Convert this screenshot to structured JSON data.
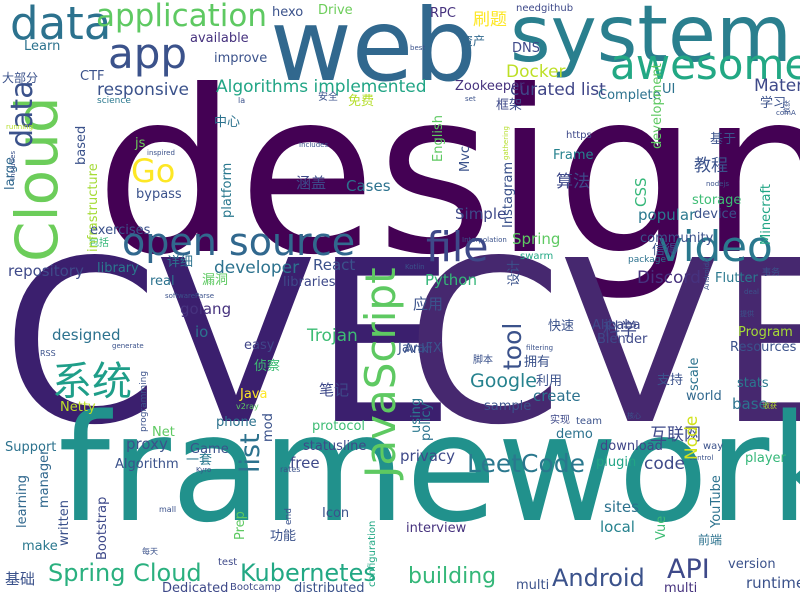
{
  "words": [
    {
      "t": "design",
      "c": "#440154",
      "v": "design"
    },
    {
      "t": "CVE",
      "c": "#3b1f6e",
      "v": "CVE-1"
    },
    {
      "t": "CVE",
      "c": "#46286f",
      "v": "CVE-2"
    },
    {
      "t": "framework",
      "c": "#21918c",
      "v": "framework"
    },
    {
      "t": "web",
      "c": "#31688e",
      "v": "web"
    },
    {
      "t": "system",
      "c": "#2a7f8e",
      "v": "system"
    },
    {
      "t": "Cloud",
      "c": "#6ccd5a",
      "v": "cloud"
    },
    {
      "t": "open source",
      "c": "#31688e",
      "v": "open-source"
    },
    {
      "t": "awesome",
      "c": "#22a884",
      "v": "awesome"
    },
    {
      "t": "JavaScript",
      "c": "#5ec962",
      "v": "javascript"
    },
    {
      "t": "app",
      "c": "#3b528b",
      "v": "app"
    },
    {
      "t": "data",
      "c": "#2c728e",
      "v": "data-top"
    },
    {
      "t": "application",
      "c": "#5ec962",
      "v": "application"
    },
    {
      "t": "video",
      "c": "#2a788e",
      "v": "video"
    },
    {
      "t": "file",
      "c": "#3e4989",
      "v": "file"
    },
    {
      "t": "Go",
      "c": "#fde725",
      "v": "go"
    },
    {
      "t": "系统",
      "c": "#1f9e89",
      "v": "xitong"
    },
    {
      "t": "data",
      "c": "#3b528b",
      "v": "data-left"
    },
    {
      "t": "Spring Cloud",
      "c": "#2ab07f",
      "v": "spring-cloud"
    },
    {
      "t": "Kubernetes",
      "c": "#22a884",
      "v": "kubernetes"
    },
    {
      "t": "LeetCode",
      "c": "#2a788e",
      "v": "leetcode"
    },
    {
      "t": "Android",
      "c": "#3b528b",
      "v": "android"
    },
    {
      "t": "API",
      "c": "#3e4989",
      "v": "api"
    },
    {
      "t": "building",
      "c": "#35b779",
      "v": "building"
    },
    {
      "t": "list",
      "c": "#2c728e",
      "v": "list"
    },
    {
      "t": "tool",
      "c": "#3b528b",
      "v": "tool"
    },
    {
      "t": "Google",
      "c": "#26828e",
      "v": "google"
    },
    {
      "t": "Docker",
      "c": "#bddf26",
      "v": "docker"
    },
    {
      "t": "Algorithms implemented",
      "c": "#21a585",
      "v": "algorithms-implemented"
    },
    {
      "t": "curated list",
      "c": "#404688",
      "v": "curated-list"
    },
    {
      "t": "responsive",
      "c": "#3b528b",
      "v": "responsive"
    },
    {
      "t": "developer",
      "c": "#2c728e",
      "v": "developer"
    },
    {
      "t": "Trojan",
      "c": "#3dbc74",
      "v": "trojan"
    },
    {
      "t": "Python",
      "c": "#35b779",
      "v": "python"
    },
    {
      "t": "React",
      "c": "#3b528b",
      "v": "react"
    },
    {
      "t": "Spring",
      "c": "#5ec962",
      "v": "spring"
    },
    {
      "t": "Discord",
      "c": "#46327e",
      "v": "discord"
    },
    {
      "t": "repository",
      "c": "#3e4989",
      "v": "repository"
    },
    {
      "t": "improve",
      "c": "#3b528b",
      "v": "improve"
    },
    {
      "t": "available",
      "c": "#46327e",
      "v": "available"
    },
    {
      "t": "proxy",
      "c": "#3b528b",
      "v": "proxy"
    },
    {
      "t": "Bootstrap",
      "c": "#3e4989",
      "v": "bootstrap"
    },
    {
      "t": "learning",
      "c": "#31688e",
      "v": "learning"
    },
    {
      "t": "designed",
      "c": "#2c728e",
      "v": "designed"
    },
    {
      "t": "Algorithm",
      "c": "#3b528b",
      "v": "algorithm"
    },
    {
      "t": "interview",
      "c": "#46327e",
      "v": "interview"
    },
    {
      "t": "privacy",
      "c": "#3e4989",
      "v": "privacy"
    },
    {
      "t": "code",
      "c": "#3e4989",
      "v": "code"
    },
    {
      "t": "create",
      "c": "#2c728e",
      "v": "create"
    },
    {
      "t": "Node",
      "c": "#d2e21b",
      "v": "node"
    },
    {
      "t": "runtime",
      "c": "#3b528b",
      "v": "runtime"
    },
    {
      "t": "version",
      "c": "#3b528b",
      "v": "version"
    },
    {
      "t": "local",
      "c": "#26828e",
      "v": "local"
    },
    {
      "t": "sites",
      "c": "#2c728e",
      "v": "sites"
    },
    {
      "t": "Flutter",
      "c": "#2a788e",
      "v": "flutter"
    },
    {
      "t": "Blender",
      "c": "#3e4989",
      "v": "blender"
    },
    {
      "t": "Alibaba",
      "c": "#3e4989",
      "v": "alibaba"
    },
    {
      "t": "Program",
      "c": "#a5db36",
      "v": "program"
    },
    {
      "t": "Resources",
      "c": "#3b528b",
      "v": "resources"
    },
    {
      "t": "scale",
      "c": "#2c728e",
      "v": "scale"
    },
    {
      "t": "stats",
      "c": "#2a788e",
      "v": "stats"
    },
    {
      "t": "base",
      "c": "#2c728e",
      "v": "base"
    },
    {
      "t": "world",
      "c": "#31688e",
      "v": "world"
    },
    {
      "t": "player",
      "c": "#35b779",
      "v": "player"
    },
    {
      "t": "download",
      "c": "#404688",
      "v": "download"
    },
    {
      "t": "plugin",
      "c": "#21a585",
      "v": "plugin"
    },
    {
      "t": "demo",
      "c": "#2c728e",
      "v": "demo"
    },
    {
      "t": "sample",
      "c": "#3b528b",
      "v": "sample"
    },
    {
      "t": "using",
      "c": "#2a788e",
      "v": "using"
    },
    {
      "t": "policy",
      "c": "#2c728e",
      "v": "policy"
    },
    {
      "t": "protocol",
      "c": "#3dbc74",
      "v": "protocol"
    },
    {
      "t": "statusline",
      "c": "#3e4989",
      "v": "statusline"
    },
    {
      "t": "free",
      "c": "#3e4989",
      "v": "free"
    },
    {
      "t": "mod",
      "c": "#3b528b",
      "v": "mod"
    },
    {
      "t": "phone",
      "c": "#2c728e",
      "v": "phone"
    },
    {
      "t": "Java",
      "c": "#fde725",
      "v": "java"
    },
    {
      "t": "easy",
      "c": "#404688",
      "v": "easy"
    },
    {
      "t": "io",
      "c": "#2c728e",
      "v": "io"
    },
    {
      "t": "golang",
      "c": "#46327e",
      "v": "golang"
    },
    {
      "t": "libraries",
      "c": "#3e4989",
      "v": "libraries"
    },
    {
      "t": "real",
      "c": "#2c728e",
      "v": "real"
    },
    {
      "t": "library",
      "c": "#2a788e",
      "v": "library"
    },
    {
      "t": "Game",
      "c": "#3b528b",
      "v": "game"
    },
    {
      "t": "Net",
      "c": "#5ec962",
      "v": "net"
    },
    {
      "t": "Netty",
      "c": "#bddf26",
      "v": "netty"
    },
    {
      "t": "Support",
      "c": "#2c728e",
      "v": "support"
    },
    {
      "t": "make",
      "c": "#2a788e",
      "v": "make"
    },
    {
      "t": "written",
      "c": "#3b528b",
      "v": "written"
    },
    {
      "t": "manager",
      "c": "#31688e",
      "v": "manager"
    },
    {
      "t": "front",
      "c": "#3b528b",
      "v": "front"
    },
    {
      "t": "bypass",
      "c": "#2c728e",
      "v": "bypass"
    },
    {
      "t": "Cases",
      "c": "#6ccd5a",
      "v": "cases"
    },
    {
      "t": "js",
      "c": "#3e4989",
      "v": "js"
    },
    {
      "t": "Simple",
      "c": "#35b779",
      "v": "simple"
    },
    {
      "t": "CSS",
      "c": "#2a788e",
      "v": "css"
    },
    {
      "t": "popular",
      "c": "#3dbc74",
      "v": "popular"
    },
    {
      "t": "storage",
      "c": "#3b528b",
      "v": "storage"
    },
    {
      "t": "device",
      "c": "#3b528b",
      "v": "device"
    },
    {
      "t": "community",
      "c": "#2c728e",
      "v": "community"
    },
    {
      "t": "package",
      "c": "#2c728e",
      "v": "package"
    },
    {
      "t": "Complete",
      "c": "#2c728e",
      "v": "complete"
    },
    {
      "t": "UI",
      "c": "#3e4989",
      "v": "ui"
    },
    {
      "t": "Material",
      "c": "#46327e",
      "v": "material"
    },
    {
      "t": "Zookeeper",
      "c": "#3b528b",
      "v": "zookeeper"
    },
    {
      "t": "Mvc",
      "c": "#5ec962",
      "v": "mvc"
    },
    {
      "t": "English",
      "c": "#3b528b",
      "v": "english"
    },
    {
      "t": "Instagram",
      "c": "#22a884",
      "v": "instagram"
    },
    {
      "t": "swarm",
      "c": "#26828e",
      "v": "swarm"
    },
    {
      "t": "Frame",
      "c": "#3e4989",
      "v": "frame"
    },
    {
      "t": "https",
      "c": "#5ec962",
      "v": "https"
    },
    {
      "t": "development",
      "c": "#21a585",
      "v": "development"
    },
    {
      "t": "Minecraft",
      "c": "#a5db36",
      "v": "minecraft"
    },
    {
      "t": "infrastructure",
      "c": "#2a788e",
      "v": "infrastructure"
    },
    {
      "t": "platform",
      "c": "#3b528b",
      "v": "platform"
    },
    {
      "t": "based",
      "c": "#31688e",
      "v": "based"
    },
    {
      "t": "large",
      "c": "#3b528b",
      "v": "large"
    },
    {
      "t": "exercises",
      "c": "#2c728e",
      "v": "exercises"
    },
    {
      "t": "Learn",
      "c": "#3b528b",
      "v": "learn"
    },
    {
      "t": "CTF",
      "c": "#2a788e",
      "v": "ctf"
    },
    {
      "t": "science",
      "c": "#6ccd5a",
      "v": "science"
    },
    {
      "t": "Drive",
      "c": "#3b528b",
      "v": "drive"
    },
    {
      "t": "hexo",
      "c": "#46327e",
      "v": "hexo"
    },
    {
      "t": "RPC",
      "c": "#3e4989",
      "v": "rpc"
    },
    {
      "t": "needgithub",
      "c": "#31688e",
      "v": "needgithub"
    },
    {
      "t": "资产",
      "c": "#fde725",
      "v": "zichan"
    },
    {
      "t": "刷题",
      "c": "#3e4989",
      "v": "shuati"
    },
    {
      "t": "DNS",
      "c": "#3b528b",
      "v": "dns"
    },
    {
      "t": "安全",
      "c": "#b5de2b",
      "v": "anquan"
    },
    {
      "t": "免费",
      "c": "#3e4989",
      "v": "mianfei"
    },
    {
      "t": "框架",
      "c": "#3b528b",
      "v": "kuangjia"
    },
    {
      "t": "学习",
      "c": "#3b528b",
      "v": "xuexi"
    },
    {
      "t": "基于",
      "c": "#3b528b",
      "v": "jiyu"
    },
    {
      "t": "教程",
      "c": "#3e4989",
      "v": "jiaocheng"
    },
    {
      "t": "算法",
      "c": "#3e4989",
      "v": "suanfa"
    },
    {
      "t": "涵盖",
      "c": "#2c728e",
      "v": "hangai"
    },
    {
      "t": "中心",
      "c": "#5ec962",
      "v": "zhongxin"
    },
    {
      "t": "漏洞",
      "c": "#2c728e",
      "v": "loudong"
    },
    {
      "t": "详细",
      "c": "#35b779",
      "v": "xiangxi"
    },
    {
      "t": "包括",
      "c": "#3b528b",
      "v": "baokuo"
    },
    {
      "t": "信得",
      "c": "#3b528b",
      "v": "xinde"
    },
    {
      "t": "设计",
      "c": "#3b528b",
      "v": "sheji"
    },
    {
      "t": "应用",
      "c": "#3b528b",
      "v": "yingyong"
    },
    {
      "t": "快速",
      "c": "#3e4989",
      "v": "kuaisu"
    },
    {
      "t": "科学",
      "c": "#3b528b",
      "v": "kexue"
    },
    {
      "t": "脚本",
      "c": "#3b528b",
      "v": "jiaoben"
    },
    {
      "t": "拥有",
      "c": "#3dbc74",
      "v": "yongyou"
    },
    {
      "t": "侦察",
      "c": "#3e4989",
      "v": "zhencha"
    },
    {
      "t": "笔记",
      "c": "#3b528b",
      "v": "biji"
    },
    {
      "t": "利用",
      "c": "#3b528b",
      "v": "liyong"
    },
    {
      "t": "支持",
      "c": "#3e4989",
      "v": "zhichi"
    },
    {
      "t": "实现",
      "c": "#3e4989",
      "v": "shixian"
    },
    {
      "t": "互联网",
      "c": "#2a788e",
      "v": "hulianwang"
    },
    {
      "t": "一套",
      "c": "#3b528b",
      "v": "yitao"
    },
    {
      "t": "功能",
      "c": "#2c728e",
      "v": "gongneng"
    },
    {
      "t": "前端",
      "c": "#3b528b",
      "v": "qianduan"
    },
    {
      "t": "基础",
      "c": "#3b528b",
      "v": "jichu"
    },
    {
      "t": "大部分",
      "c": "#3b528b",
      "v": "dabufen"
    },
    {
      "t": "事务",
      "c": "#3b528b",
      "v": "shiwu"
    },
    {
      "t": "核心",
      "c": "#3b528b",
      "v": "hexin"
    },
    {
      "t": "每天",
      "c": "#3b528b",
      "v": "meitian"
    },
    {
      "t": "Kyro",
      "c": "#2c728e",
      "v": "kyro"
    },
    {
      "t": "YouTube",
      "c": "#3dbc74",
      "v": "youtube"
    },
    {
      "t": "Vue",
      "c": "#46327e",
      "v": "vue"
    },
    {
      "t": "multi",
      "c": "#3b528b",
      "v": "multi"
    },
    {
      "t": "distributed",
      "c": "#3b528b",
      "v": "distributed"
    },
    {
      "t": "Bootcamp",
      "c": "#3e4989",
      "v": "bootcamp"
    },
    {
      "t": "Dedicated",
      "c": "#3e4989",
      "v": "dedicated"
    },
    {
      "t": "test",
      "c": "#3e4989",
      "v": "test"
    },
    {
      "t": "Prep",
      "c": "#5ec962",
      "v": "prep"
    },
    {
      "t": "end",
      "c": "#3b528b",
      "v": "end"
    },
    {
      "t": "Icon",
      "c": "#3b528b",
      "v": "icon"
    },
    {
      "t": "configuration",
      "c": "#22a884",
      "v": "configuration"
    },
    {
      "t": "way",
      "c": "#3b528b",
      "v": "way"
    },
    {
      "t": "team",
      "c": "#3b528b",
      "v": "team"
    },
    {
      "t": "JavaFX",
      "c": "#3b528b",
      "v": "javafx"
    },
    {
      "t": "Anki",
      "c": "#3b528b",
      "v": "anki"
    },
    {
      "t": "v2ray",
      "c": "#5ec962",
      "v": "v2ray"
    },
    {
      "t": "programming",
      "c": "#3b528b",
      "v": "programming"
    },
    {
      "t": "rates",
      "c": "#3b528b",
      "v": "rates"
    },
    {
      "t": "mall",
      "c": "#3b528b",
      "v": "mall"
    },
    {
      "t": "RSS",
      "c": "#3b528b",
      "v": "rss"
    },
    {
      "t": "generate",
      "c": "#3b528b",
      "v": "generate"
    },
    {
      "t": "softwareParse",
      "c": "#3b528b",
      "v": "softwareparse"
    },
    {
      "t": "Kotlin",
      "c": "#3b528b",
      "v": "kotlin"
    },
    {
      "t": "Interpolation",
      "c": "#3b528b",
      "v": "interpolation"
    },
    {
      "t": "nodejs",
      "c": "#3b528b",
      "v": "nodejs"
    },
    {
      "t": "best",
      "c": "#3b528b",
      "v": "best"
    },
    {
      "t": "inspired",
      "c": "#3b528b",
      "v": "inspired"
    },
    {
      "t": "gathering",
      "c": "#b5de2b",
      "v": "gathering"
    },
    {
      "t": "running",
      "c": "#b5de2b",
      "v": "running"
    },
    {
      "t": "Includes",
      "c": "#3b528b",
      "v": "includes"
    },
    {
      "t": "la",
      "c": "#3b528b",
      "v": "la"
    },
    {
      "t": "set",
      "c": "#3b528b",
      "v": "set"
    },
    {
      "t": "提供",
      "c": "#3b528b",
      "v": "tigong"
    },
    {
      "t": "filtering",
      "c": "#3b528b",
      "v": "filtering"
    },
    {
      "t": "AndroidA",
      "c": "#3b528b",
      "v": "androida"
    },
    {
      "t": "deal",
      "c": "#3b528b",
      "v": "deal"
    },
    {
      "t": "control",
      "c": "#3b528b",
      "v": "control"
    },
    {
      "t": "comA",
      "c": "#3b528b",
      "v": "coma"
    },
    {
      "t": "收获",
      "c": "#3b528b",
      "v": "shouhuo"
    },
    {
      "t": "搭建工",
      "c": "#b5de2b",
      "v": "dajiangong"
    },
    {
      "t": "进度",
      "c": "#3b528b",
      "v": "jindu"
    }
  ]
}
